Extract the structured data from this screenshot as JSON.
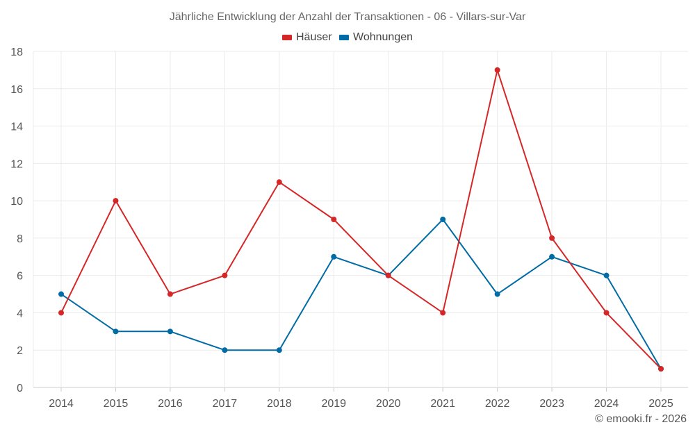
{
  "chart_data": {
    "type": "line",
    "title": "Jährliche Entwicklung der Anzahl der Transaktionen - 06 - Villars-sur-Var",
    "categories": [
      "2014",
      "2015",
      "2016",
      "2017",
      "2018",
      "2019",
      "2020",
      "2021",
      "2022",
      "2023",
      "2024",
      "2025"
    ],
    "series": [
      {
        "name": "Häuser",
        "color": "#d62728",
        "values": [
          4,
          10,
          5,
          6,
          11,
          9,
          6,
          4,
          17,
          8,
          4,
          1
        ]
      },
      {
        "name": "Wohnungen",
        "color": "#006ba4",
        "values": [
          5,
          3,
          3,
          2,
          2,
          7,
          6,
          9,
          5,
          7,
          6,
          1
        ]
      }
    ],
    "ylim": [
      0,
      18
    ],
    "yticks": [
      0,
      2,
      4,
      6,
      8,
      10,
      12,
      14,
      16,
      18
    ],
    "xlabel": "",
    "ylabel": "",
    "grid": true,
    "legend_position": "top-center"
  },
  "credit": "© emooki.fr - 2026"
}
